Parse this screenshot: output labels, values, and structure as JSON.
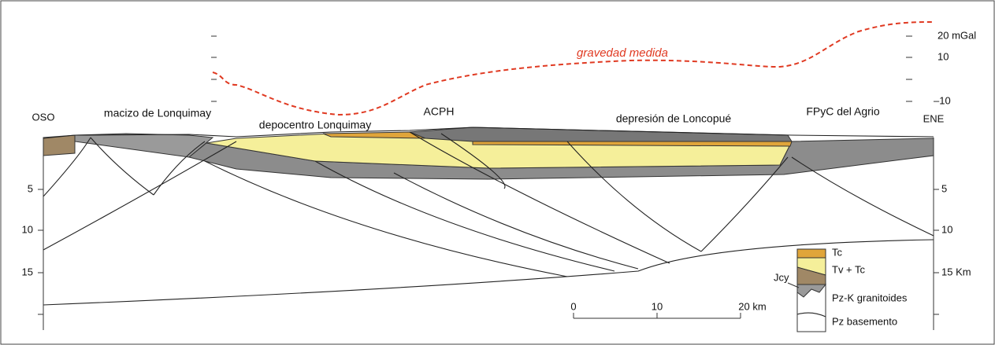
{
  "gravity_label": "gravedad medida",
  "locations": [
    "OSO",
    "macizo de Lonquimay",
    "depocentro Lonquimay",
    "ACPH",
    "depresión de Loncopué",
    "FPyC del Agrio",
    "ENE"
  ],
  "left_depth_ticks": [
    "5",
    "10",
    "15"
  ],
  "right_gravity_ticks": [
    "20 mGal",
    "10",
    "–10"
  ],
  "right_depth_ticks": [
    "5",
    "10",
    "15 Km"
  ],
  "scale_bar": [
    "0",
    "10",
    "20 km"
  ],
  "legend": [
    "Tc",
    "Tv + Tc",
    "Jcy",
    "Pz-K granitoides",
    "Pz basemento"
  ]
}
